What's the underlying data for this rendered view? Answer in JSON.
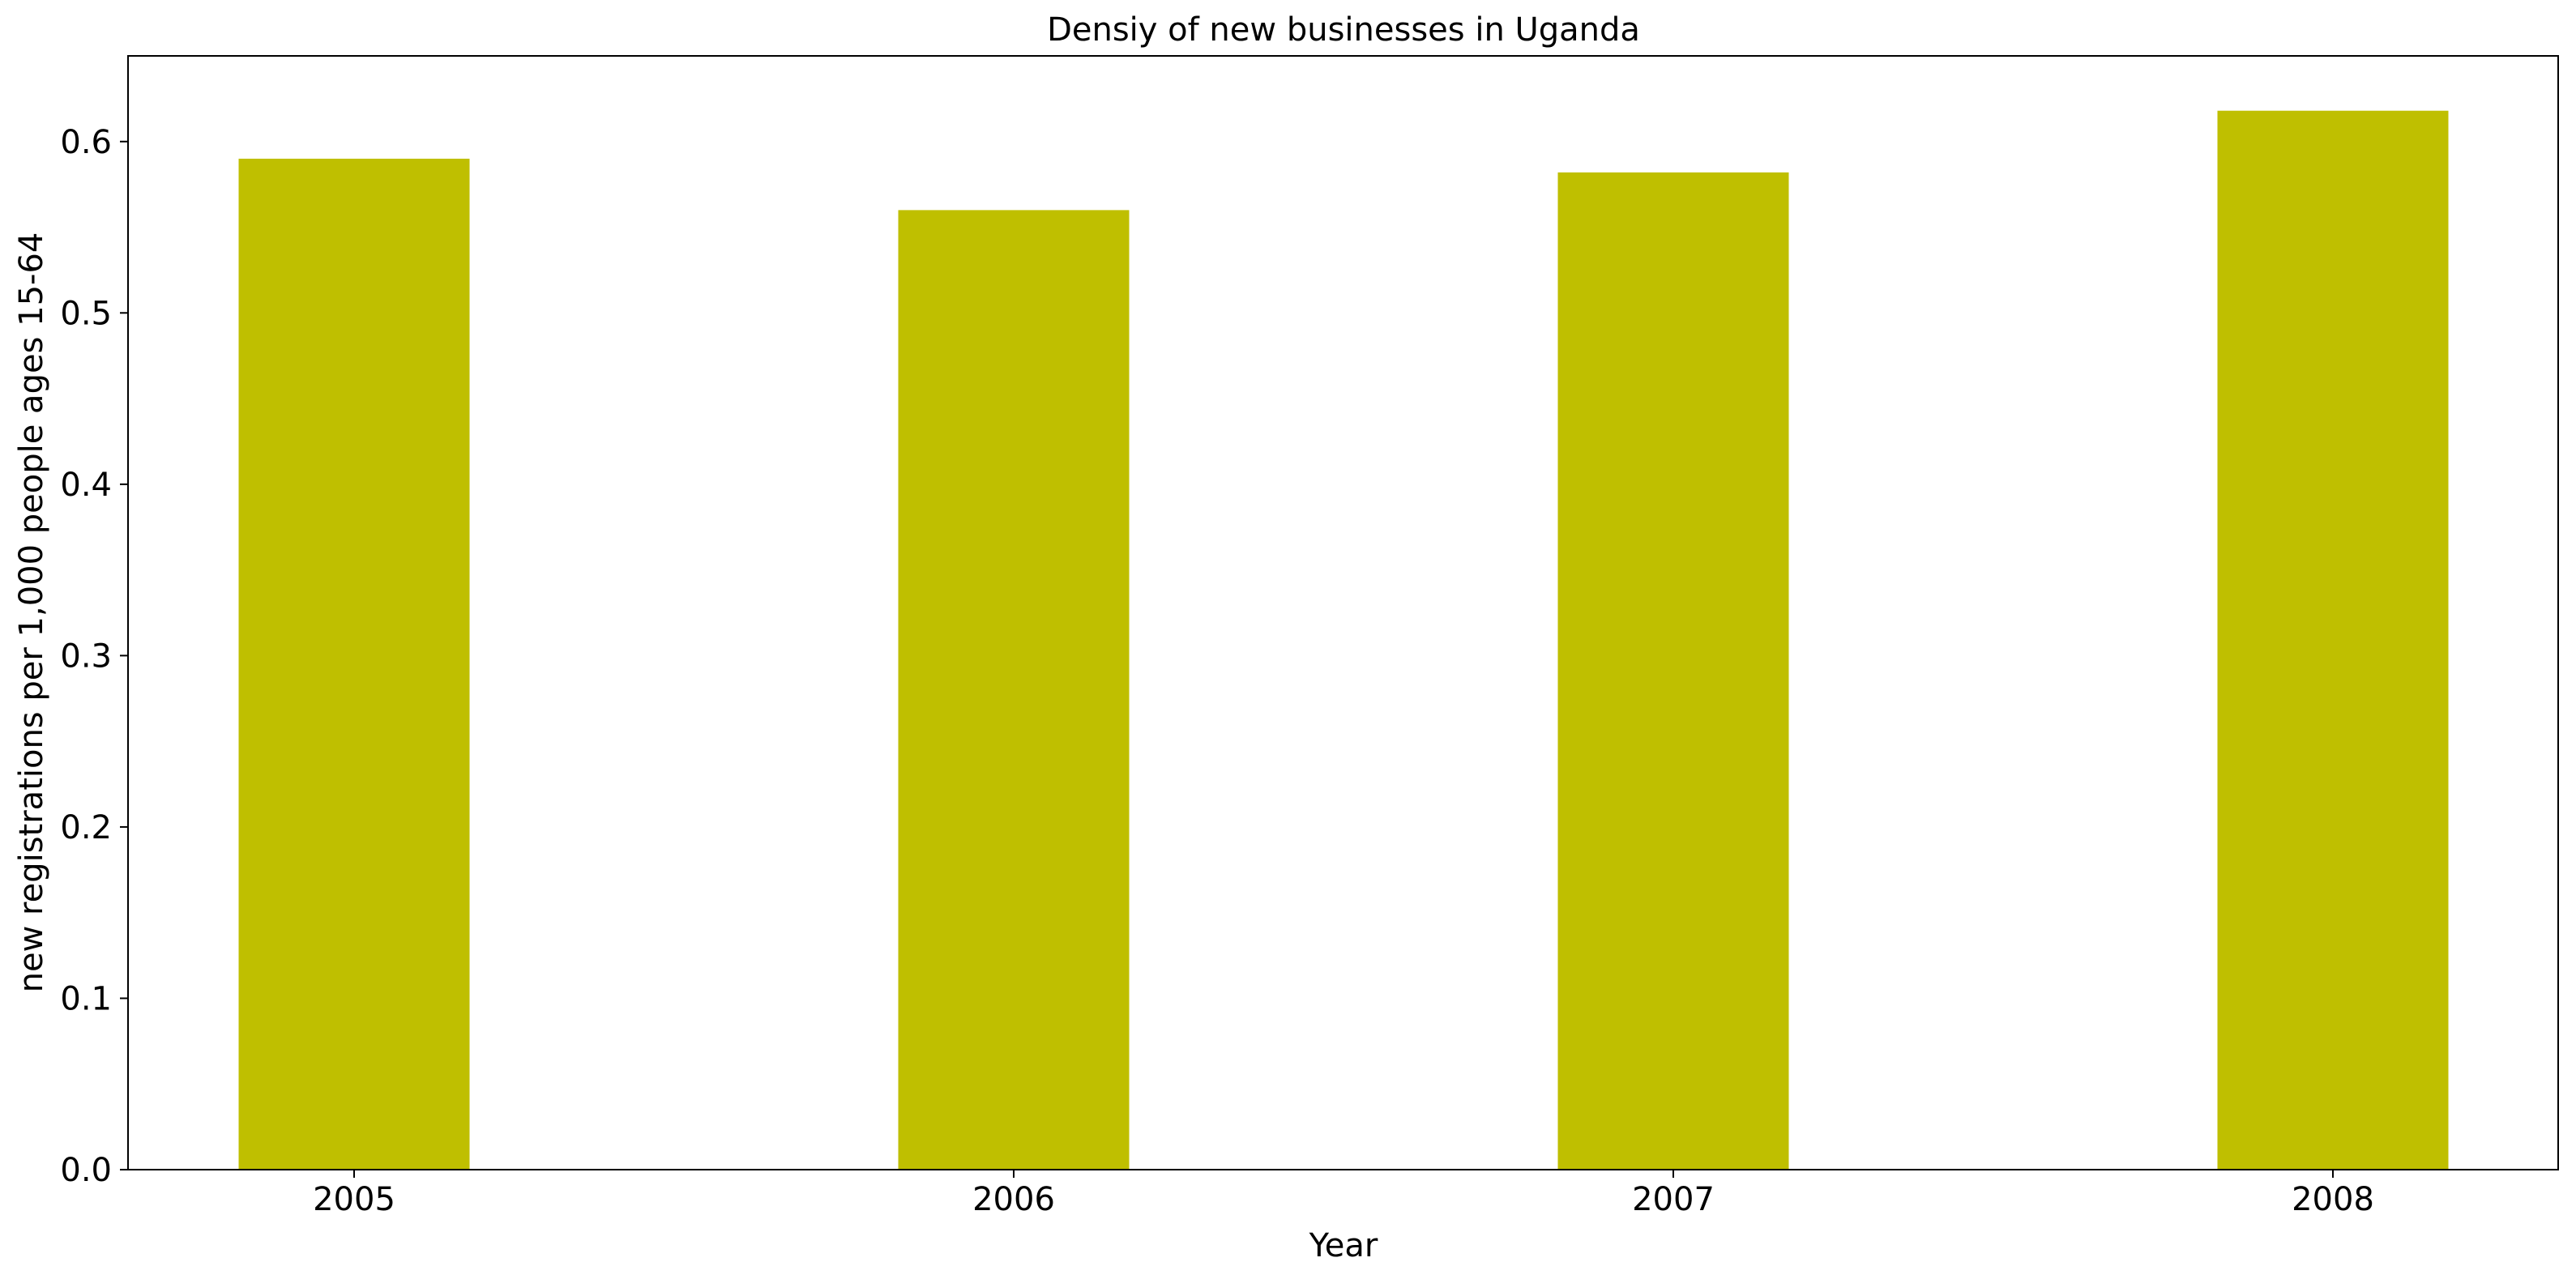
{
  "chart_data": {
    "type": "bar",
    "title": "Densiy of new businesses in Uganda",
    "xlabel": "Year",
    "ylabel": "new registrations per 1,000 people ages 15-64",
    "categories": [
      "2005",
      "2006",
      "2007",
      "2008"
    ],
    "values": [
      0.59,
      0.56,
      0.582,
      0.618
    ],
    "ylim": [
      0,
      0.65
    ],
    "yticks": [
      0.0,
      0.1,
      0.2,
      0.3,
      0.4,
      0.5,
      0.6
    ],
    "ytick_labels": [
      "0.0",
      "0.1",
      "0.2",
      "0.3",
      "0.4",
      "0.5",
      "0.6"
    ],
    "bar_color": "#bfbf00",
    "grid": false,
    "legend": "none"
  }
}
